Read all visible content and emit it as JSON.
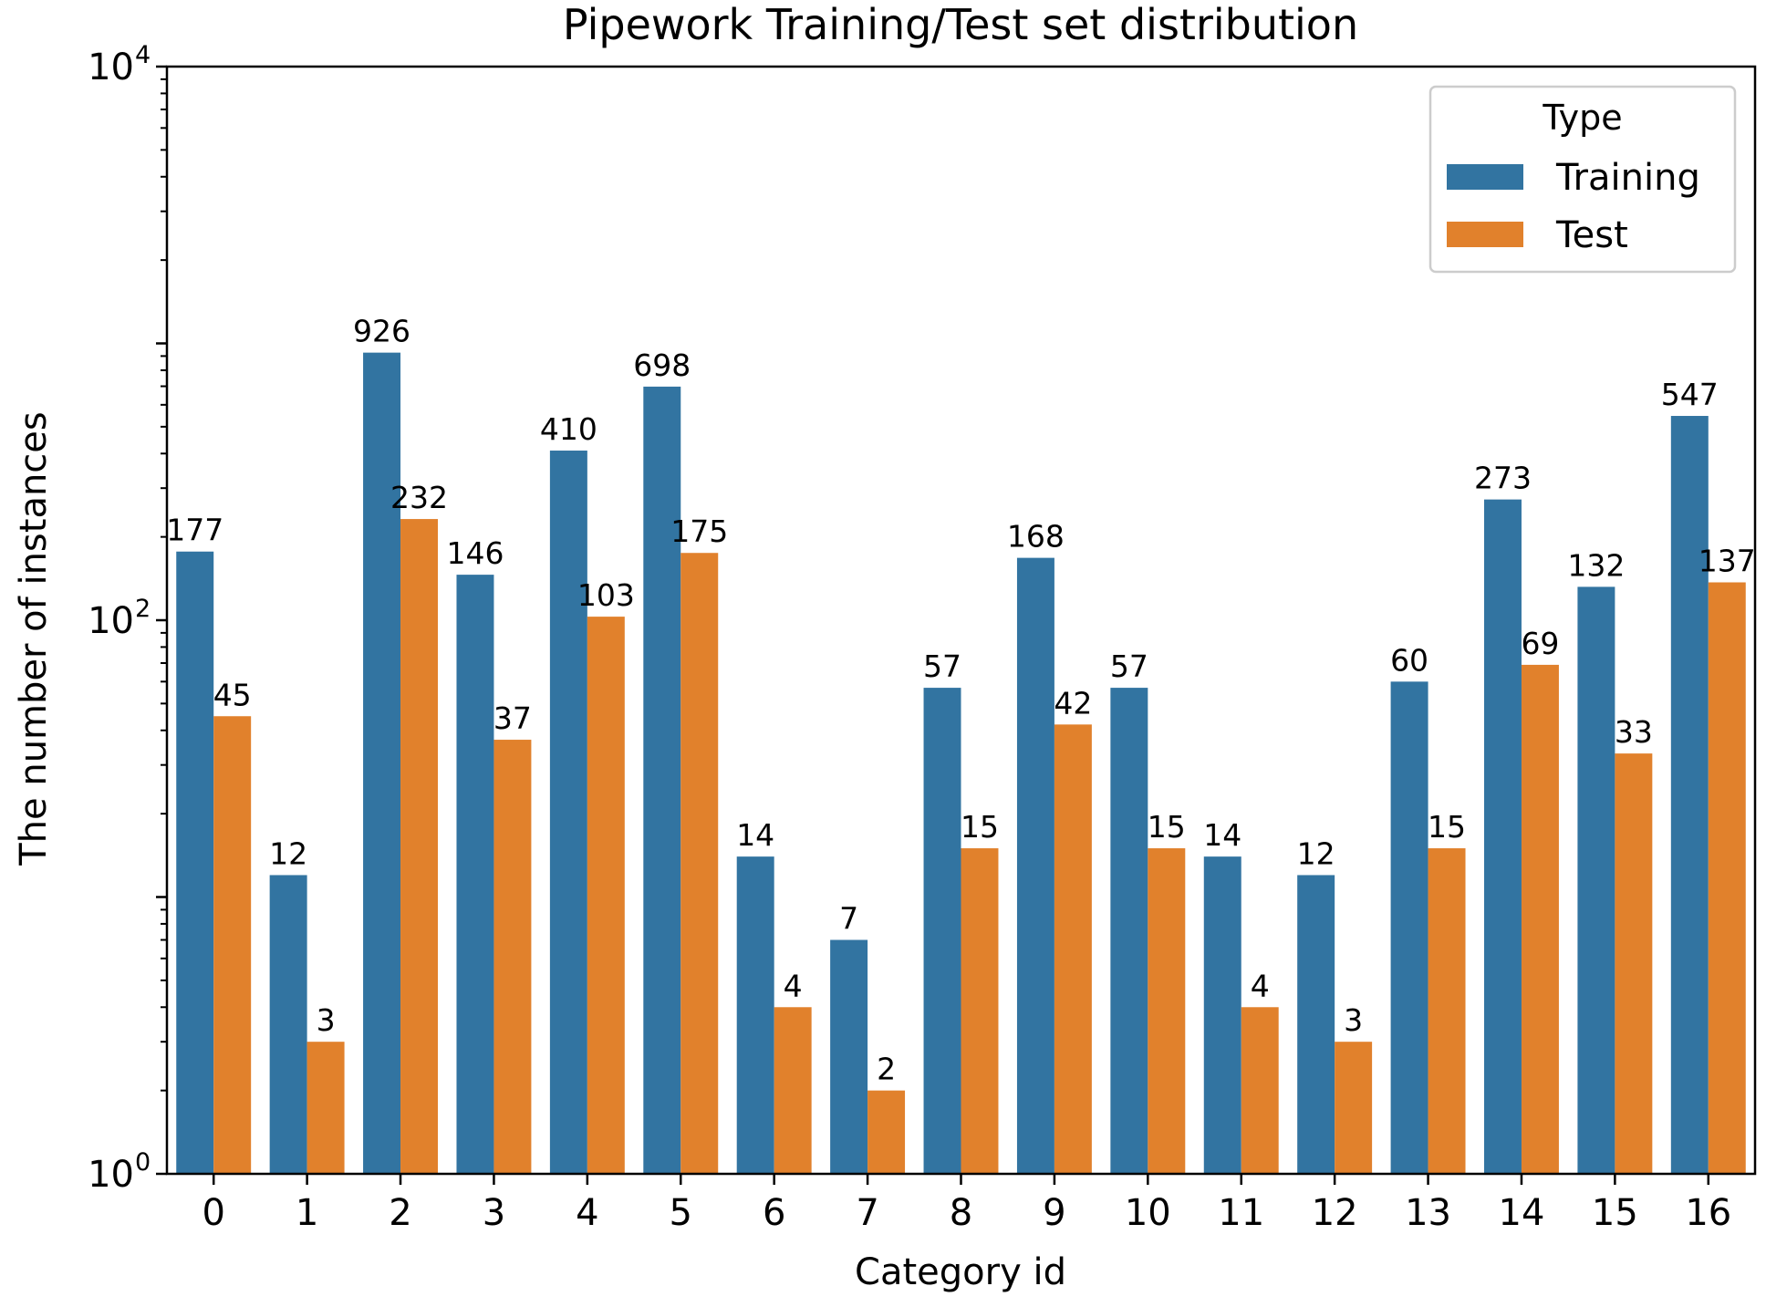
{
  "chart_data": {
    "type": "bar",
    "title": "Pipework Training/Test set distribution",
    "xlabel": "Category id",
    "ylabel": "The number of instances",
    "yscale": "log",
    "ylim": [
      1,
      10000
    ],
    "y_ticks": [
      {
        "value": 1,
        "base": "10",
        "exp": "0"
      },
      {
        "value": 100,
        "base": "10",
        "exp": "2"
      },
      {
        "value": 10000,
        "base": "10",
        "exp": "4"
      }
    ],
    "categories": [
      "0",
      "1",
      "2",
      "3",
      "4",
      "5",
      "6",
      "7",
      "8",
      "9",
      "10",
      "11",
      "12",
      "13",
      "14",
      "15",
      "16"
    ],
    "series": [
      {
        "name": "Training",
        "color": "#3274a1",
        "values": [
          177,
          12,
          926,
          146,
          410,
          698,
          14,
          7,
          57,
          168,
          57,
          14,
          12,
          60,
          273,
          132,
          547
        ],
        "labels": [
          "177",
          "12",
          "926",
          "146",
          "410",
          "698",
          "14",
          "7",
          "57",
          "168",
          "57",
          "14",
          "12",
          "60",
          "273",
          "132",
          "547"
        ]
      },
      {
        "name": "Test",
        "color": "#e1812c",
        "values": [
          45,
          3,
          232,
          37,
          103,
          175,
          4,
          2,
          15,
          42,
          15,
          4,
          3,
          15,
          69,
          33,
          137
        ],
        "labels": [
          "45",
          "3",
          "232",
          "37",
          "103",
          "175",
          "4",
          "2",
          "15",
          "42",
          "15",
          "4",
          "3",
          "15",
          "69",
          "33",
          "137"
        ]
      }
    ],
    "legend": {
      "title": "Type",
      "position": "top-right"
    },
    "grid": false
  }
}
